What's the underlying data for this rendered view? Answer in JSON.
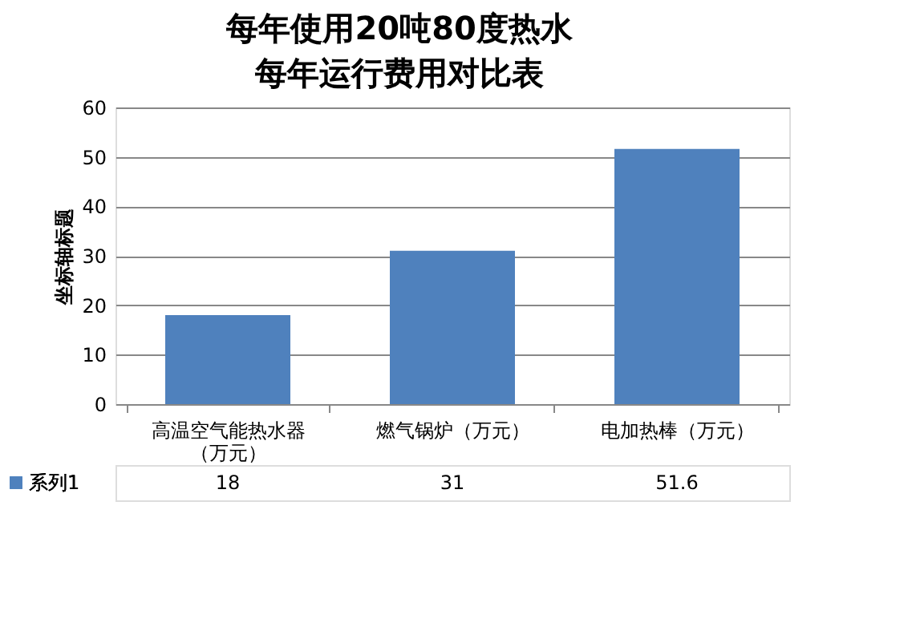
{
  "chart_data": {
    "type": "bar",
    "title": "每年使用20吨80度热水每年运行费用对比表",
    "ylabel": "坐标轴标题",
    "categories": [
      "高温空气能热水器（万元）",
      "燃气锅炉（万元）",
      "电加热棒（万元）"
    ],
    "series": [
      {
        "name": "系列1",
        "color": "#4f81bd",
        "values": [
          18,
          31,
          51.6
        ]
      }
    ],
    "ylim": [
      0,
      60
    ],
    "yticks": [
      0,
      10,
      20,
      30,
      40,
      50,
      60
    ],
    "grid": "y",
    "data_labels": true
  }
}
